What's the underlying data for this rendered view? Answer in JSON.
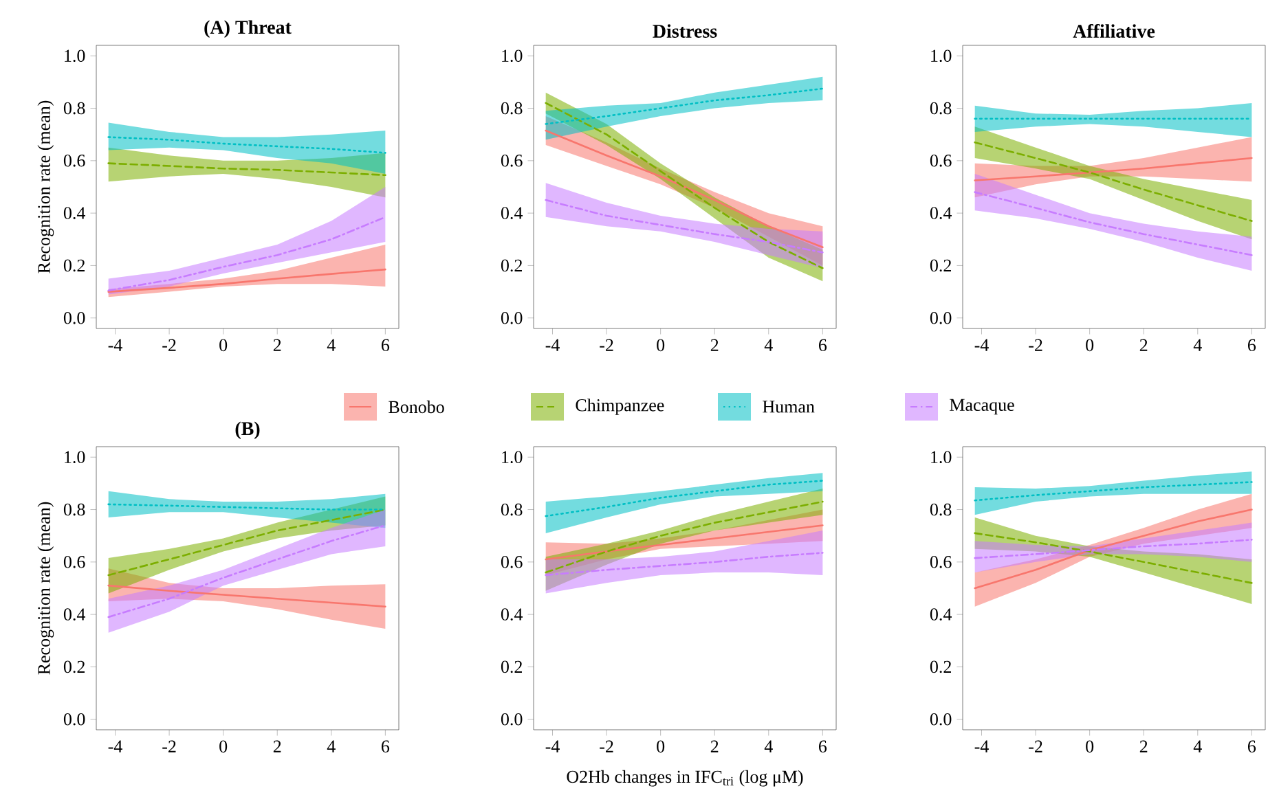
{
  "chart_data": [
    {
      "type": "line",
      "title": "(A)    Threat",
      "ylabel": "Recognition rate (mean)",
      "x": [
        -4.25,
        -2,
        0,
        2,
        4,
        6
      ],
      "xlim": [
        -4.7,
        6.5
      ],
      "ylim": [
        -0.04,
        1.04
      ],
      "xticks": [
        -4,
        -2,
        0,
        2,
        4,
        6
      ],
      "yticks": [
        {
          "value": 0,
          "label": "0.0"
        },
        {
          "value": 0.2,
          "label": "0.2"
        },
        {
          "value": 0.4,
          "label": "0.4"
        },
        {
          "value": 0.6,
          "label": "0.6"
        },
        {
          "value": 0.8,
          "label": "0.8"
        },
        {
          "value": 1,
          "label": "1.0"
        }
      ],
      "series": [
        {
          "color": "#f8766d",
          "line_style": "solid",
          "values": [
            0.1,
            0.115,
            0.13,
            0.15,
            0.168,
            0.185
          ],
          "lower": [
            0.08,
            0.1,
            0.12,
            0.13,
            0.13,
            0.12
          ],
          "upper": [
            0.11,
            0.13,
            0.15,
            0.18,
            0.23,
            0.28
          ]
        },
        {
          "color": "#7cae00",
          "line_style": "dashed",
          "values": [
            0.59,
            0.58,
            0.57,
            0.565,
            0.555,
            0.545
          ],
          "lower": [
            0.52,
            0.54,
            0.55,
            0.53,
            0.5,
            0.46
          ],
          "upper": [
            0.65,
            0.62,
            0.6,
            0.6,
            0.61,
            0.63
          ]
        },
        {
          "color": "#00bfc4",
          "line_style": "dotted",
          "values": [
            0.69,
            0.68,
            0.665,
            0.655,
            0.645,
            0.63
          ],
          "lower": [
            0.64,
            0.65,
            0.64,
            0.61,
            0.59,
            0.55
          ],
          "upper": [
            0.745,
            0.71,
            0.69,
            0.69,
            0.7,
            0.715
          ]
        },
        {
          "color": "#c77cff",
          "line_style": "dashdot",
          "values": [
            0.105,
            0.145,
            0.195,
            0.24,
            0.3,
            0.385
          ],
          "lower": [
            0.09,
            0.12,
            0.17,
            0.21,
            0.25,
            0.29
          ],
          "upper": [
            0.15,
            0.18,
            0.23,
            0.28,
            0.37,
            0.5
          ]
        }
      ]
    },
    {
      "type": "line",
      "title": "Distress",
      "legend": "bottom",
      "x": [
        -4.25,
        -2,
        0,
        2,
        4,
        6
      ],
      "xlim": [
        -4.7,
        6.5
      ],
      "ylim": [
        -0.04,
        1.04
      ],
      "xticks": [
        -4,
        -2,
        0,
        2,
        4,
        6
      ],
      "yticks": [
        {
          "value": 0,
          "label": "0.0"
        },
        {
          "value": 0.2,
          "label": "0.2"
        },
        {
          "value": 0.4,
          "label": "0.4"
        },
        {
          "value": 0.6,
          "label": "0.6"
        },
        {
          "value": 0.8,
          "label": "0.8"
        },
        {
          "value": 1,
          "label": "1.0"
        }
      ],
      "series": [
        {
          "name": "Bonobo",
          "color": "#f8766d",
          "line_style": "solid",
          "values": [
            0.715,
            0.62,
            0.54,
            0.45,
            0.35,
            0.27
          ],
          "lower": [
            0.66,
            0.58,
            0.51,
            0.42,
            0.31,
            0.2
          ],
          "upper": [
            0.77,
            0.67,
            0.57,
            0.48,
            0.4,
            0.35
          ]
        },
        {
          "name": "Chimpanzee",
          "color": "#7cae00",
          "line_style": "dashed",
          "values": [
            0.82,
            0.7,
            0.56,
            0.42,
            0.29,
            0.19
          ],
          "lower": [
            0.78,
            0.66,
            0.53,
            0.38,
            0.23,
            0.14
          ],
          "upper": [
            0.86,
            0.74,
            0.59,
            0.46,
            0.35,
            0.26
          ]
        },
        {
          "name": "Human",
          "color": "#00bfc4",
          "line_style": "dotted",
          "values": [
            0.74,
            0.77,
            0.8,
            0.83,
            0.85,
            0.875
          ],
          "lower": [
            0.68,
            0.73,
            0.77,
            0.8,
            0.82,
            0.83
          ],
          "upper": [
            0.79,
            0.81,
            0.82,
            0.86,
            0.89,
            0.92
          ]
        },
        {
          "name": "Macaque",
          "color": "#c77cff",
          "line_style": "dashdot",
          "values": [
            0.45,
            0.39,
            0.355,
            0.32,
            0.29,
            0.25
          ],
          "lower": [
            0.385,
            0.35,
            0.33,
            0.29,
            0.24,
            0.19
          ],
          "upper": [
            0.515,
            0.44,
            0.39,
            0.36,
            0.34,
            0.33
          ]
        }
      ]
    },
    {
      "type": "line",
      "title": "Affiliative",
      "x": [
        -4.25,
        -2,
        0,
        2,
        4,
        6
      ],
      "xlim": [
        -4.7,
        6.5
      ],
      "ylim": [
        -0.04,
        1.04
      ],
      "xticks": [
        -4,
        -2,
        0,
        2,
        4,
        6
      ],
      "yticks": [
        {
          "value": 0,
          "label": "0.0"
        },
        {
          "value": 0.2,
          "label": "0.2"
        },
        {
          "value": 0.4,
          "label": "0.4"
        },
        {
          "value": 0.6,
          "label": "0.6"
        },
        {
          "value": 0.8,
          "label": "0.8"
        },
        {
          "value": 1,
          "label": "1.0"
        }
      ],
      "series": [
        {
          "color": "#f8766d",
          "line_style": "solid",
          "values": [
            0.525,
            0.54,
            0.555,
            0.57,
            0.59,
            0.61
          ],
          "lower": [
            0.46,
            0.51,
            0.54,
            0.54,
            0.53,
            0.52
          ],
          "upper": [
            0.59,
            0.58,
            0.58,
            0.61,
            0.65,
            0.69
          ]
        },
        {
          "color": "#7cae00",
          "line_style": "dashed",
          "values": [
            0.67,
            0.61,
            0.555,
            0.49,
            0.43,
            0.37
          ],
          "lower": [
            0.61,
            0.57,
            0.53,
            0.45,
            0.37,
            0.3
          ],
          "upper": [
            0.73,
            0.65,
            0.58,
            0.53,
            0.49,
            0.45
          ]
        },
        {
          "color": "#00bfc4",
          "line_style": "dotted",
          "values": [
            0.76,
            0.76,
            0.76,
            0.76,
            0.76,
            0.76
          ],
          "lower": [
            0.71,
            0.73,
            0.74,
            0.73,
            0.71,
            0.69
          ],
          "upper": [
            0.81,
            0.78,
            0.775,
            0.79,
            0.8,
            0.82
          ]
        },
        {
          "color": "#c77cff",
          "line_style": "dashdot",
          "values": [
            0.48,
            0.42,
            0.365,
            0.32,
            0.28,
            0.24
          ],
          "lower": [
            0.41,
            0.38,
            0.34,
            0.29,
            0.23,
            0.18
          ],
          "upper": [
            0.55,
            0.47,
            0.4,
            0.36,
            0.33,
            0.31
          ]
        }
      ]
    },
    {
      "type": "line",
      "title": "(B)",
      "ylabel": "Recognition rate (mean)",
      "x": [
        -4.25,
        -2,
        0,
        2,
        4,
        6
      ],
      "xlim": [
        -4.7,
        6.5
      ],
      "ylim": [
        -0.04,
        1.04
      ],
      "xticks": [
        -4,
        -2,
        0,
        2,
        4,
        6
      ],
      "yticks": [
        {
          "value": 0,
          "label": "0.0"
        },
        {
          "value": 0.2,
          "label": "0.2"
        },
        {
          "value": 0.4,
          "label": "0.4"
        },
        {
          "value": 0.6,
          "label": "0.6"
        },
        {
          "value": 0.8,
          "label": "0.8"
        },
        {
          "value": 1,
          "label": "1.0"
        }
      ],
      "series": [
        {
          "color": "#f8766d",
          "line_style": "solid",
          "values": [
            0.51,
            0.49,
            0.475,
            0.46,
            0.445,
            0.43
          ],
          "lower": [
            0.45,
            0.46,
            0.45,
            0.42,
            0.38,
            0.345
          ],
          "upper": [
            0.575,
            0.52,
            0.5,
            0.5,
            0.51,
            0.515
          ]
        },
        {
          "color": "#7cae00",
          "line_style": "dashed",
          "values": [
            0.55,
            0.61,
            0.665,
            0.72,
            0.76,
            0.8
          ],
          "lower": [
            0.48,
            0.57,
            0.64,
            0.69,
            0.72,
            0.74
          ],
          "upper": [
            0.615,
            0.65,
            0.69,
            0.75,
            0.8,
            0.85
          ]
        },
        {
          "color": "#00bfc4",
          "line_style": "dotted",
          "values": [
            0.82,
            0.815,
            0.81,
            0.805,
            0.8,
            0.8
          ],
          "lower": [
            0.77,
            0.79,
            0.79,
            0.77,
            0.75,
            0.73
          ],
          "upper": [
            0.87,
            0.84,
            0.83,
            0.83,
            0.84,
            0.86
          ]
        },
        {
          "color": "#c77cff",
          "line_style": "dashdot",
          "values": [
            0.39,
            0.46,
            0.54,
            0.61,
            0.68,
            0.74
          ],
          "lower": [
            0.33,
            0.41,
            0.51,
            0.57,
            0.63,
            0.66
          ],
          "upper": [
            0.46,
            0.51,
            0.57,
            0.65,
            0.73,
            0.8
          ]
        }
      ]
    },
    {
      "type": "line",
      "xlabel": "O2Hb changes in IFC$_{tri}$ (log μM)",
      "x": [
        -4.25,
        -2,
        0,
        2,
        4,
        6
      ],
      "xlim": [
        -4.7,
        6.5
      ],
      "ylim": [
        -0.04,
        1.04
      ],
      "xticks": [
        -4,
        -2,
        0,
        2,
        4,
        6
      ],
      "yticks": [
        {
          "value": 0,
          "label": "0.0"
        },
        {
          "value": 0.2,
          "label": "0.2"
        },
        {
          "value": 0.4,
          "label": "0.4"
        },
        {
          "value": 0.6,
          "label": "0.6"
        },
        {
          "value": 0.8,
          "label": "0.8"
        },
        {
          "value": 1,
          "label": "1.0"
        }
      ],
      "series": [
        {
          "color": "#f8766d",
          "line_style": "solid",
          "values": [
            0.61,
            0.64,
            0.665,
            0.69,
            0.715,
            0.74
          ],
          "lower": [
            0.55,
            0.61,
            0.65,
            0.66,
            0.67,
            0.68
          ],
          "upper": [
            0.675,
            0.67,
            0.69,
            0.72,
            0.76,
            0.8
          ]
        },
        {
          "color": "#7cae00",
          "line_style": "dashed",
          "values": [
            0.56,
            0.64,
            0.7,
            0.75,
            0.79,
            0.83
          ],
          "lower": [
            0.49,
            0.59,
            0.67,
            0.72,
            0.75,
            0.78
          ],
          "upper": [
            0.62,
            0.67,
            0.72,
            0.78,
            0.83,
            0.88
          ]
        },
        {
          "color": "#00bfc4",
          "line_style": "dotted",
          "values": [
            0.775,
            0.81,
            0.845,
            0.87,
            0.895,
            0.91
          ],
          "lower": [
            0.71,
            0.77,
            0.82,
            0.85,
            0.86,
            0.87
          ],
          "upper": [
            0.83,
            0.85,
            0.87,
            0.895,
            0.92,
            0.94
          ]
        },
        {
          "color": "#c77cff",
          "line_style": "dashdot",
          "values": [
            0.55,
            0.57,
            0.585,
            0.6,
            0.62,
            0.635
          ],
          "lower": [
            0.48,
            0.52,
            0.55,
            0.56,
            0.56,
            0.55
          ],
          "upper": [
            0.61,
            0.61,
            0.62,
            0.64,
            0.68,
            0.72
          ]
        }
      ]
    },
    {
      "type": "line",
      "x": [
        -4.25,
        -2,
        0,
        2,
        4,
        6
      ],
      "xlim": [
        -4.7,
        6.5
      ],
      "ylim": [
        -0.04,
        1.04
      ],
      "xticks": [
        -4,
        -2,
        0,
        2,
        4,
        6
      ],
      "yticks": [
        {
          "value": 0,
          "label": "0.0"
        },
        {
          "value": 0.2,
          "label": "0.2"
        },
        {
          "value": 0.4,
          "label": "0.4"
        },
        {
          "value": 0.6,
          "label": "0.6"
        },
        {
          "value": 0.8,
          "label": "0.8"
        },
        {
          "value": 1,
          "label": "1.0"
        }
      ],
      "series": [
        {
          "color": "#f8766d",
          "line_style": "solid",
          "values": [
            0.5,
            0.57,
            0.645,
            0.7,
            0.755,
            0.8
          ],
          "lower": [
            0.43,
            0.52,
            0.62,
            0.67,
            0.7,
            0.73
          ],
          "upper": [
            0.56,
            0.61,
            0.665,
            0.73,
            0.8,
            0.86
          ]
        },
        {
          "color": "#7cae00",
          "line_style": "dashed",
          "values": [
            0.71,
            0.675,
            0.64,
            0.6,
            0.56,
            0.52
          ],
          "lower": [
            0.65,
            0.64,
            0.62,
            0.56,
            0.5,
            0.44
          ],
          "upper": [
            0.77,
            0.7,
            0.66,
            0.64,
            0.63,
            0.61
          ]
        },
        {
          "color": "#00bfc4",
          "line_style": "dotted",
          "values": [
            0.835,
            0.855,
            0.87,
            0.885,
            0.895,
            0.905
          ],
          "lower": [
            0.78,
            0.83,
            0.85,
            0.86,
            0.86,
            0.86
          ],
          "upper": [
            0.885,
            0.88,
            0.89,
            0.91,
            0.93,
            0.945
          ]
        },
        {
          "color": "#c77cff",
          "line_style": "dashdot",
          "values": [
            0.615,
            0.63,
            0.645,
            0.66,
            0.67,
            0.685
          ],
          "lower": [
            0.56,
            0.6,
            0.63,
            0.63,
            0.62,
            0.6
          ],
          "upper": [
            0.68,
            0.665,
            0.66,
            0.69,
            0.72,
            0.75
          ]
        }
      ]
    }
  ]
}
